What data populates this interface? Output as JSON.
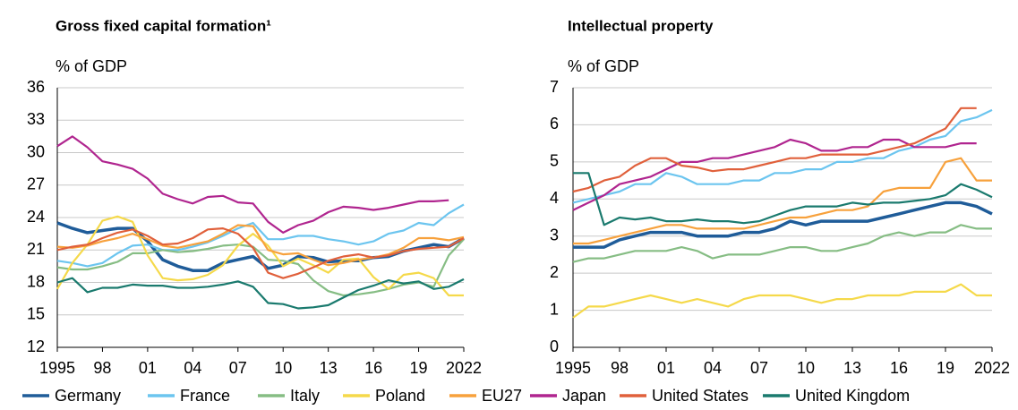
{
  "legend": [
    {
      "name": "Germany",
      "color": "#1f5c99"
    },
    {
      "name": "France",
      "color": "#6cc5ef"
    },
    {
      "name": "Italy",
      "color": "#86bd84"
    },
    {
      "name": "Poland",
      "color": "#f5d94a"
    },
    {
      "name": "EU27",
      "color": "#f7a13c"
    },
    {
      "name": "Japan",
      "color": "#b0258f"
    },
    {
      "name": "United States",
      "color": "#e0603b"
    },
    {
      "name": "United Kingdom",
      "color": "#1a7a6e"
    }
  ],
  "chart_data": [
    {
      "type": "line",
      "title": "Gross fixed capital formation¹",
      "y_label": "% of GDP",
      "x": [
        1995,
        1996,
        1997,
        1998,
        1999,
        2000,
        2001,
        2002,
        2003,
        2004,
        2005,
        2006,
        2007,
        2008,
        2009,
        2010,
        2011,
        2012,
        2013,
        2014,
        2015,
        2016,
        2017,
        2018,
        2019,
        2020,
        2021,
        2022
      ],
      "xlim": [
        1995,
        2022
      ],
      "xticks": [
        1995,
        {
          "value": 1998,
          "label": "98"
        },
        {
          "value": 2001,
          "label": "01"
        },
        {
          "value": 2004,
          "label": "04"
        },
        {
          "value": 2007,
          "label": "07"
        },
        {
          "value": 2010,
          "label": "10"
        },
        {
          "value": 2013,
          "label": "13"
        },
        {
          "value": 2016,
          "label": "16"
        },
        {
          "value": 2019,
          "label": "19"
        },
        2022
      ],
      "ylim": [
        12,
        36
      ],
      "yticks": [
        12,
        15,
        18,
        21,
        24,
        27,
        30,
        33,
        36
      ],
      "grid": true,
      "series": [
        {
          "values": [
            23.5,
            23.0,
            22.6,
            22.8,
            23.0,
            23.0,
            21.8,
            20.1,
            19.5,
            19.1,
            19.1,
            19.8,
            20.1,
            20.4,
            19.3,
            19.6,
            20.4,
            20.3,
            19.9,
            20.0,
            20.0,
            20.3,
            20.4,
            20.9,
            21.2,
            21.5,
            21.3,
            22.1
          ]
        },
        {
          "values": [
            20.0,
            19.8,
            19.5,
            19.8,
            20.7,
            21.4,
            21.5,
            21.0,
            21.0,
            21.3,
            21.7,
            22.3,
            23.0,
            23.5,
            22.0,
            22.0,
            22.3,
            22.3,
            22.0,
            21.8,
            21.5,
            21.8,
            22.5,
            22.8,
            23.5,
            23.3,
            24.4,
            25.2
          ]
        },
        {
          "values": [
            19.4,
            19.2,
            19.2,
            19.5,
            19.9,
            20.7,
            20.7,
            21.0,
            20.8,
            20.9,
            21.1,
            21.4,
            21.5,
            21.3,
            20.1,
            20.0,
            19.7,
            18.2,
            17.2,
            16.8,
            16.9,
            17.1,
            17.4,
            17.8,
            18.0,
            17.6,
            20.5,
            22.0
          ]
        },
        {
          "values": [
            17.4,
            19.8,
            21.5,
            23.7,
            24.1,
            23.6,
            20.5,
            18.4,
            18.2,
            18.3,
            18.7,
            19.6,
            21.4,
            22.5,
            21.4,
            19.5,
            20.2,
            19.6,
            18.9,
            20.1,
            20.2,
            18.5,
            17.4,
            18.7,
            18.9,
            18.4,
            16.8,
            16.8
          ]
        },
        {
          "values": [
            21.3,
            21.2,
            21.4,
            21.8,
            22.1,
            22.5,
            22.0,
            21.4,
            21.2,
            21.5,
            21.8,
            22.5,
            23.3,
            23.2,
            21.0,
            20.6,
            20.7,
            20.1,
            19.6,
            19.8,
            20.1,
            20.3,
            20.6,
            21.2,
            22.1,
            22.1,
            21.9,
            22.2
          ]
        },
        {
          "values": [
            30.6,
            31.5,
            30.5,
            29.2,
            28.9,
            28.5,
            27.6,
            26.2,
            25.7,
            25.3,
            25.9,
            26.0,
            25.4,
            25.3,
            23.6,
            22.6,
            23.3,
            23.7,
            24.5,
            25.0,
            24.9,
            24.7,
            24.9,
            25.2,
            25.5,
            25.5,
            25.6,
            null
          ]
        },
        {
          "values": [
            21.0,
            21.3,
            21.5,
            22.1,
            22.6,
            22.9,
            22.3,
            21.5,
            21.6,
            22.1,
            22.9,
            23.0,
            22.5,
            21.2,
            18.9,
            18.4,
            18.8,
            19.4,
            20.0,
            20.4,
            20.6,
            20.3,
            20.5,
            20.9,
            21.1,
            21.2,
            21.3,
            22.1
          ]
        },
        {
          "values": [
            18.0,
            18.4,
            17.1,
            17.5,
            17.5,
            17.8,
            17.7,
            17.7,
            17.5,
            17.5,
            17.6,
            17.8,
            18.1,
            17.6,
            16.1,
            16.0,
            15.6,
            15.7,
            15.9,
            16.6,
            17.3,
            17.7,
            18.2,
            17.9,
            18.1,
            17.4,
            17.6,
            18.3
          ]
        }
      ]
    },
    {
      "type": "line",
      "title": "Intellectual property",
      "y_label": "% of GDP",
      "x": [
        1995,
        1996,
        1997,
        1998,
        1999,
        2000,
        2001,
        2002,
        2003,
        2004,
        2005,
        2006,
        2007,
        2008,
        2009,
        2010,
        2011,
        2012,
        2013,
        2014,
        2015,
        2016,
        2017,
        2018,
        2019,
        2020,
        2021,
        2022
      ],
      "xlim": [
        1995,
        2022
      ],
      "xticks": [
        1995,
        {
          "value": 1998,
          "label": "98"
        },
        {
          "value": 2001,
          "label": "01"
        },
        {
          "value": 2004,
          "label": "04"
        },
        {
          "value": 2007,
          "label": "07"
        },
        {
          "value": 2010,
          "label": "10"
        },
        {
          "value": 2013,
          "label": "13"
        },
        {
          "value": 2016,
          "label": "16"
        },
        {
          "value": 2019,
          "label": "19"
        },
        2022
      ],
      "ylim": [
        0,
        7
      ],
      "yticks": [
        0,
        1,
        2,
        3,
        4,
        5,
        6,
        7
      ],
      "grid": true,
      "series": [
        {
          "values": [
            2.7,
            2.7,
            2.7,
            2.9,
            3.0,
            3.1,
            3.1,
            3.1,
            3.0,
            3.0,
            3.0,
            3.1,
            3.1,
            3.2,
            3.4,
            3.3,
            3.4,
            3.4,
            3.4,
            3.4,
            3.5,
            3.6,
            3.7,
            3.8,
            3.9,
            3.9,
            3.8,
            3.6
          ]
        },
        {
          "values": [
            3.9,
            4.0,
            4.1,
            4.2,
            4.4,
            4.4,
            4.7,
            4.6,
            4.4,
            4.4,
            4.4,
            4.5,
            4.5,
            4.7,
            4.7,
            4.8,
            4.8,
            5.0,
            5.0,
            5.1,
            5.1,
            5.3,
            5.4,
            5.6,
            5.7,
            6.1,
            6.2,
            6.4
          ]
        },
        {
          "values": [
            2.3,
            2.4,
            2.4,
            2.5,
            2.6,
            2.6,
            2.6,
            2.7,
            2.6,
            2.4,
            2.5,
            2.5,
            2.5,
            2.6,
            2.7,
            2.7,
            2.6,
            2.6,
            2.7,
            2.8,
            3.0,
            3.1,
            3.0,
            3.1,
            3.1,
            3.3,
            3.2,
            3.2
          ]
        },
        {
          "values": [
            0.8,
            1.1,
            1.1,
            1.2,
            1.3,
            1.4,
            1.3,
            1.2,
            1.3,
            1.2,
            1.1,
            1.3,
            1.4,
            1.4,
            1.4,
            1.3,
            1.2,
            1.3,
            1.3,
            1.4,
            1.4,
            1.4,
            1.5,
            1.5,
            1.5,
            1.7,
            1.4,
            1.4
          ]
        },
        {
          "values": [
            2.8,
            2.8,
            2.9,
            3.0,
            3.1,
            3.2,
            3.3,
            3.3,
            3.2,
            3.2,
            3.2,
            3.2,
            3.3,
            3.4,
            3.5,
            3.5,
            3.6,
            3.7,
            3.7,
            3.8,
            4.2,
            4.3,
            4.3,
            4.3,
            5.0,
            5.1,
            4.5,
            4.5
          ]
        },
        {
          "values": [
            3.7,
            3.9,
            4.1,
            4.4,
            4.5,
            4.6,
            4.8,
            5.0,
            5.0,
            5.1,
            5.1,
            5.2,
            5.3,
            5.4,
            5.6,
            5.5,
            5.3,
            5.3,
            5.4,
            5.4,
            5.6,
            5.6,
            5.4,
            5.4,
            5.4,
            5.5,
            5.5,
            null
          ]
        },
        {
          "values": [
            4.2,
            4.3,
            4.5,
            4.6,
            4.9,
            5.1,
            5.1,
            4.9,
            4.85,
            4.75,
            4.8,
            4.8,
            4.9,
            5.0,
            5.1,
            5.1,
            5.2,
            5.2,
            5.2,
            5.2,
            5.3,
            5.4,
            5.5,
            5.7,
            5.9,
            6.45,
            6.45,
            null
          ]
        },
        {
          "values": [
            4.7,
            4.7,
            3.3,
            3.5,
            3.45,
            3.5,
            3.4,
            3.4,
            3.45,
            3.4,
            3.4,
            3.35,
            3.4,
            3.55,
            3.7,
            3.8,
            3.8,
            3.8,
            3.9,
            3.85,
            3.9,
            3.9,
            3.95,
            4.0,
            4.1,
            4.4,
            4.25,
            4.05
          ]
        }
      ]
    }
  ]
}
